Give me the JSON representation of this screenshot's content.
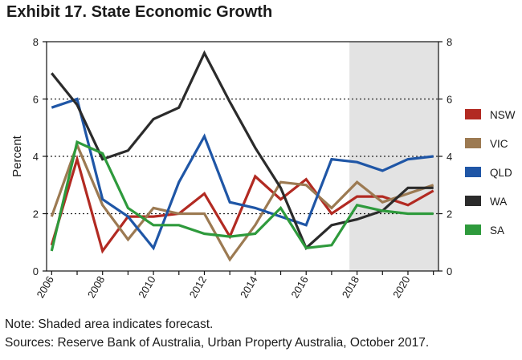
{
  "title": "Exhibit 17. State Economic Growth",
  "note": "Note: Shaded area indicates forecast.",
  "sources": "Sources: Reserve Bank of Australia, Urban Property Australia, October 2017.",
  "chart_data": {
    "type": "line",
    "ylabel": "Percent",
    "xlabel": "",
    "x": [
      2006,
      2007,
      2008,
      2009,
      2010,
      2011,
      2012,
      2013,
      2014,
      2015,
      2016,
      2017,
      2018,
      2019,
      2020,
      2021
    ],
    "xlim": [
      2005.8,
      2021.2
    ],
    "xticks": [
      2006,
      2008,
      2010,
      2012,
      2014,
      2016,
      2018,
      2020
    ],
    "ylim": [
      0,
      8
    ],
    "yticks": [
      0,
      2,
      4,
      6,
      8
    ],
    "gridlines_dotted": [
      2,
      4,
      6
    ],
    "forecast_start": 2017.7,
    "forecast_color": "#e3e3e3",
    "series": [
      {
        "name": "NSW",
        "color": "#b22a22",
        "values": [
          0.9,
          3.9,
          0.7,
          1.9,
          1.9,
          2.0,
          2.7,
          1.2,
          3.3,
          2.5,
          3.2,
          2.0,
          2.6,
          2.6,
          2.3,
          2.8
        ]
      },
      {
        "name": "VIC",
        "color": "#9c7a52",
        "values": [
          1.9,
          4.4,
          2.3,
          1.1,
          2.2,
          2.0,
          2.0,
          0.4,
          1.6,
          3.1,
          3.0,
          2.2,
          3.1,
          2.4,
          2.7,
          3.0
        ]
      },
      {
        "name": "QLD",
        "color": "#1f56a6",
        "values": [
          5.7,
          6.0,
          2.5,
          1.9,
          0.8,
          3.1,
          4.7,
          2.4,
          2.2,
          1.9,
          1.6,
          3.9,
          3.8,
          3.5,
          3.9,
          4.0
        ]
      },
      {
        "name": "WA",
        "color": "#2b2b2b",
        "values": [
          6.9,
          5.8,
          3.9,
          4.2,
          5.3,
          5.7,
          7.6,
          5.9,
          4.3,
          2.9,
          0.8,
          1.6,
          1.8,
          2.1,
          2.9,
          2.9
        ]
      },
      {
        "name": "SA",
        "color": "#2e9a3c",
        "values": [
          0.7,
          4.5,
          4.1,
          2.2,
          1.6,
          1.6,
          1.3,
          1.2,
          1.3,
          2.2,
          0.8,
          0.9,
          2.3,
          2.1,
          2.0,
          2.0
        ]
      }
    ]
  }
}
